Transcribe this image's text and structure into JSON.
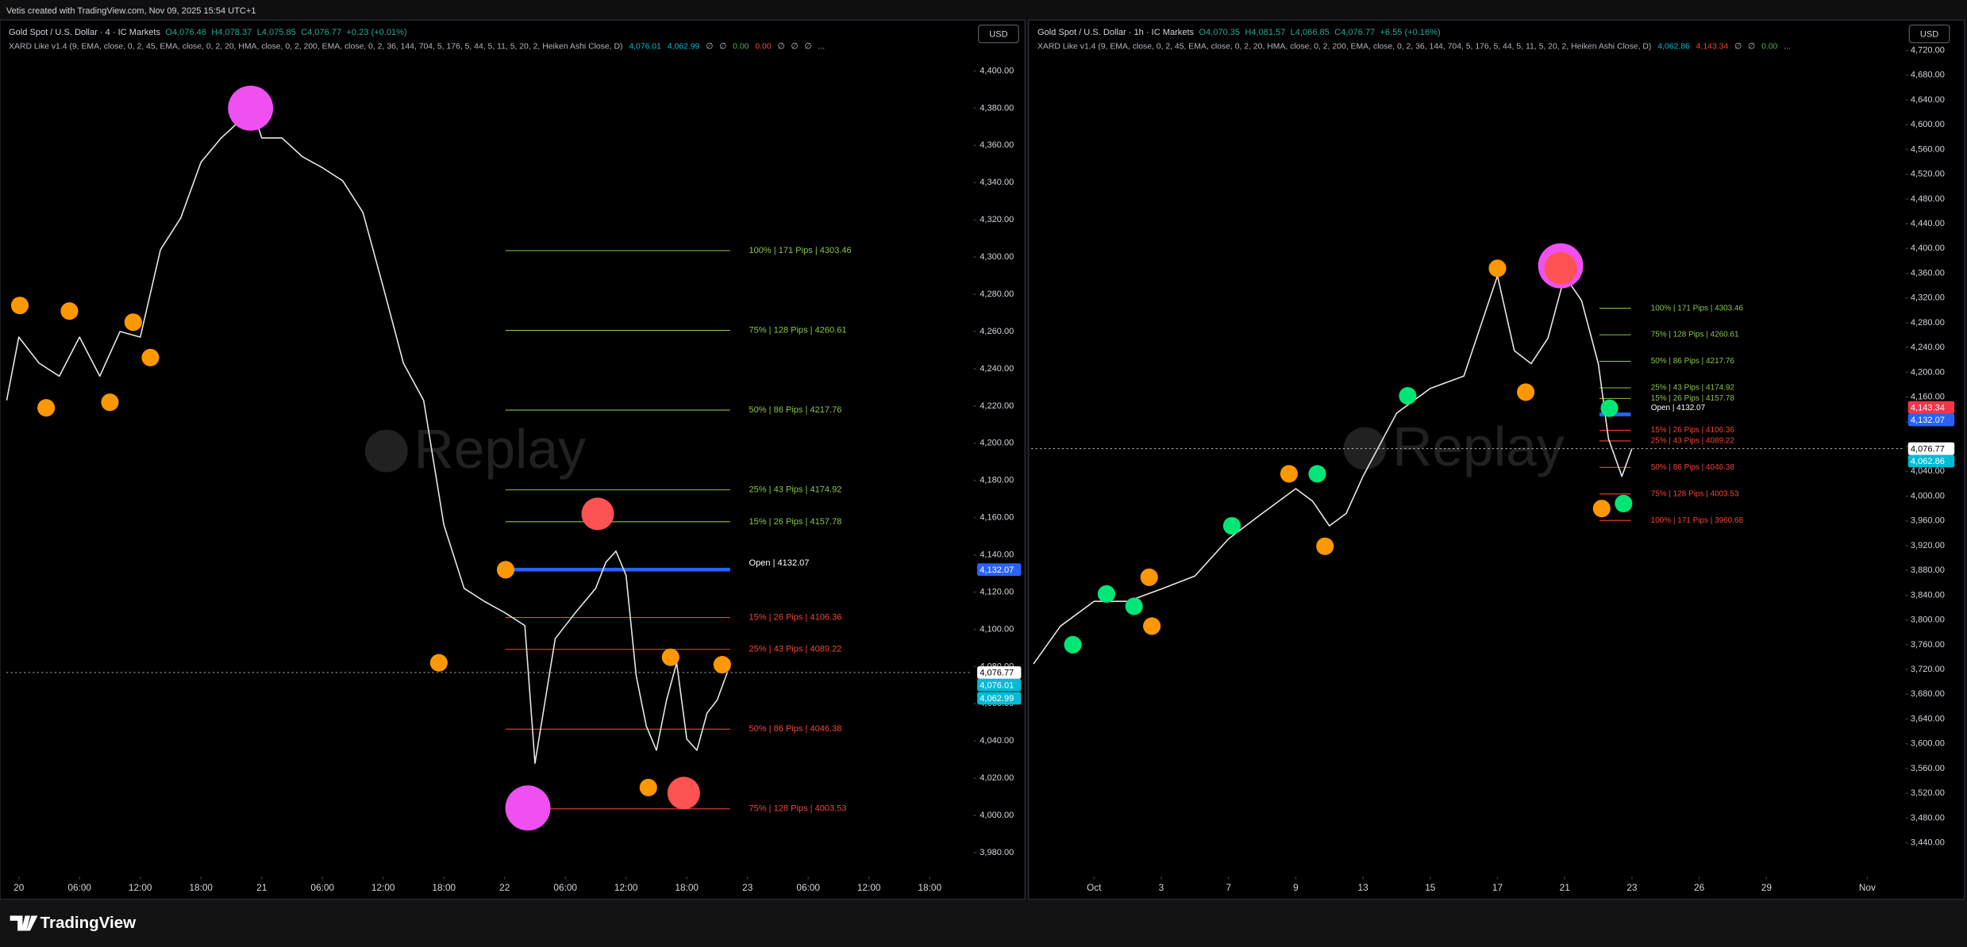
{
  "header": {
    "credit": "Vetis created with TradingView.com, Nov 09, 2025 15:54 UTC+1"
  },
  "footer": {
    "brand": "TradingView"
  },
  "chart_data": [
    {
      "type": "line",
      "title": "Gold Spot / U.S. Dollar · 4 · IC Markets",
      "ohlc": [
        "O4,076.46",
        "H4,078.37",
        "L4,075.85",
        "C4,076.77",
        "+0.23 (+0.01%)"
      ],
      "ohlc_color": "#26a69a",
      "indicator": "XARD Like v1.4 (9, EMA, close, 0, 2, 45, EMA, close, 0, 2, 20, HMA, close, 0, 2, 200, EMA, close, 0, 2, 36, 144, 704, 5, 176, 5, 44, 5, 11, 5, 20, 2, Heiken Ashi Close, D)",
      "indicator_values": [
        {
          "label": "4,076.01",
          "color": "#00bcd4"
        },
        {
          "label": "4,062.99",
          "color": "#00bcd4"
        },
        {
          "label": "∅",
          "color": "#b2b5be"
        },
        {
          "label": "∅",
          "color": "#b2b5be"
        },
        {
          "label": "0.00",
          "color": "#4caf50"
        },
        {
          "label": "0.00",
          "color": "#f44336"
        },
        {
          "label": "∅",
          "color": "#b2b5be"
        },
        {
          "label": "∅",
          "color": "#b2b5be"
        },
        {
          "label": "∅",
          "color": "#b2b5be"
        },
        {
          "label": "...",
          "color": "#b2b5be"
        }
      ],
      "currency": "USD",
      "watermark": "Replay",
      "x": [
        -1.2,
        0,
        2,
        4,
        6,
        8,
        10,
        12,
        14,
        16,
        18,
        20,
        22,
        23,
        24,
        26,
        28,
        30,
        32,
        34,
        36,
        38,
        40,
        42,
        44,
        46,
        48,
        50,
        51,
        53,
        55,
        57,
        58,
        59,
        60,
        61,
        62,
        63,
        64,
        65,
        66,
        67,
        68,
        69,
        70
      ],
      "series": [
        {
          "color": "#e8e8e8",
          "values": [
            4223,
            4257,
            4243,
            4236,
            4257,
            4236,
            4260,
            4257,
            4304,
            4321,
            4351,
            4364,
            4374,
            4381,
            4364,
            4364,
            4354,
            4348,
            4341,
            4324,
            4284,
            4243,
            4223,
            4156,
            4122,
            4115,
            4109,
            4102,
            4028,
            4095,
            4109,
            4122,
            4136,
            4142,
            4129,
            4075,
            4048,
            4035,
            4062,
            4082,
            4041,
            4035,
            4055,
            4062,
            4076.77
          ]
        }
      ],
      "last_price_line": true,
      "xlim": [
        -1.24,
        94.2
      ],
      "xticks": [
        {
          "value": 0,
          "label": "20"
        },
        {
          "value": 6,
          "label": "06:00"
        },
        {
          "value": 12,
          "label": "12:00"
        },
        {
          "value": 18,
          "label": "18:00"
        },
        {
          "value": 24,
          "label": "21"
        },
        {
          "value": 30,
          "label": "06:00"
        },
        {
          "value": 36,
          "label": "12:00"
        },
        {
          "value": 42,
          "label": "18:00"
        },
        {
          "value": 48,
          "label": "22"
        },
        {
          "value": 54,
          "label": "06:00"
        },
        {
          "value": 60,
          "label": "12:00"
        },
        {
          "value": 66,
          "label": "18:00"
        },
        {
          "value": 72,
          "label": "23"
        },
        {
          "value": 78,
          "label": "06:00"
        },
        {
          "value": 84,
          "label": "12:00"
        },
        {
          "value": 90,
          "label": "18:00"
        }
      ],
      "ylim": [
        3967,
        4426
      ],
      "yticks": [
        {
          "value": 4400,
          "label": "4,400.00"
        },
        {
          "value": 4380,
          "label": "4,380.00"
        },
        {
          "value": 4360,
          "label": "4,360.00"
        },
        {
          "value": 4340,
          "label": "4,340.00"
        },
        {
          "value": 4320,
          "label": "4,320.00"
        },
        {
          "value": 4300,
          "label": "4,300.00"
        },
        {
          "value": 4280,
          "label": "4,280.00"
        },
        {
          "value": 4260,
          "label": "4,260.00"
        },
        {
          "value": 4240,
          "label": "4,240.00"
        },
        {
          "value": 4220,
          "label": "4,220.00"
        },
        {
          "value": 4200,
          "label": "4,200.00"
        },
        {
          "value": 4180,
          "label": "4,180.00"
        },
        {
          "value": 4160,
          "label": "4,160.00"
        },
        {
          "value": 4140,
          "label": "4,140.00"
        },
        {
          "value": 4120,
          "label": "4,120.00"
        },
        {
          "value": 4100,
          "label": "4,100.00"
        },
        {
          "value": 4080,
          "label": "4,080.00"
        },
        {
          "value": 4060,
          "label": "4,060.00"
        },
        {
          "value": 4040,
          "label": "4,040.00"
        },
        {
          "value": 4020,
          "label": "4,020.00"
        },
        {
          "value": 4000,
          "label": "4,000.00"
        },
        {
          "value": 3980,
          "label": "3,980.00"
        }
      ],
      "levels": [
        {
          "label": "100% | 171 Pips | 4303.46",
          "value": 4303.46,
          "color": "#8bc34a"
        },
        {
          "label": "75% | 128 Pips | 4260.61",
          "value": 4260.61,
          "color": "#8bc34a"
        },
        {
          "label": "50% | 86 Pips | 4217.76",
          "value": 4217.76,
          "color": "#8bc34a"
        },
        {
          "label": "25% | 43 Pips | 4174.92",
          "value": 4174.92,
          "color": "#8bc34a"
        },
        {
          "label": "15% | 26 Pips | 4157.78",
          "value": 4157.78,
          "color": "#8bc34a"
        },
        {
          "label": "Open | 4132.07",
          "value": 4132.07,
          "color": "#2962ff"
        },
        {
          "label": "15% | 26 Pips | 4106.36",
          "value": 4106.36,
          "color": "#f44336"
        },
        {
          "label": "25% | 43 Pips | 4089.22",
          "value": 4089.22,
          "color": "#f44336"
        },
        {
          "label": "50% | 86 Pips | 4046.38",
          "value": 4046.38,
          "color": "#f44336"
        },
        {
          "label": "75% | 128 Pips | 4003.53",
          "value": 4003.53,
          "color": "#f44336"
        }
      ],
      "price_tags": [
        {
          "value": 4132.07,
          "label": "4,132.07",
          "color": "#2962ff"
        },
        {
          "value": 4076.77,
          "label": "4,076.77",
          "color": "#ffffff"
        },
        {
          "value": 4076.01,
          "label": "4,076.01",
          "color": "#00bcd4"
        },
        {
          "value": 4062.99,
          "label": "4,062.99",
          "color": "#00bcd4"
        }
      ],
      "signals": [
        {
          "color": "#ff9800",
          "size": "small",
          "x": [
            0.1,
            2.7,
            5,
            9,
            11.3,
            13,
            41.5,
            48.1,
            62.2,
            64.4,
            69.5
          ],
          "values": [
            4274,
            4219,
            4271,
            4222,
            4265,
            4246,
            4082,
            4132,
            4015,
            4085,
            4081
          ]
        },
        {
          "color": "#f050f0",
          "size": "large",
          "x": [
            22.9,
            50.3
          ],
          "values": [
            4380,
            4004
          ]
        },
        {
          "color": "#ff5252",
          "size": "medium",
          "x": [
            57.2,
            65.7
          ],
          "values": [
            4162,
            4012
          ]
        }
      ]
    },
    {
      "type": "line",
      "title": "Gold Spot / U.S. Dollar · 1h · IC Markets",
      "ohlc": [
        "O4,070.35",
        "H4,081.57",
        "L4,066.85",
        "C4,076.77",
        "+6.55 (+0.16%)"
      ],
      "ohlc_color": "#26a69a",
      "indicator": "XARD Like v1.4 (9, EMA, close, 0, 2, 45, EMA, close, 0, 2, 20, HMA, close, 0, 2, 200, EMA, close, 0, 2, 36, 144, 704, 5, 176, 5, 44, 5, 11, 5, 20, 2, Heiken Ashi Close, D)",
      "indicator_values": [
        {
          "label": "4,062.86",
          "color": "#00bcd4"
        },
        {
          "label": "4,143.34",
          "color": "#f44336"
        },
        {
          "label": "∅",
          "color": "#b2b5be"
        },
        {
          "label": "∅",
          "color": "#b2b5be"
        },
        {
          "label": "0.00",
          "color": "#4caf50"
        },
        {
          "label": "...",
          "color": "#b2b5be"
        }
      ],
      "currency": "USD",
      "watermark": "Replay",
      "x": [
        -1.8,
        -1,
        0,
        1,
        2,
        3,
        4,
        5,
        6,
        6.5,
        7,
        7.5,
        8,
        9,
        10,
        11,
        12,
        12.5,
        13,
        13.5,
        14,
        14.5,
        15,
        15.3,
        15.7,
        16
      ],
      "series": [
        {
          "color": "#e8e8e8",
          "values": [
            3729,
            3790,
            3830,
            3830,
            3850,
            3871,
            3931,
            3972,
            4012,
            3992,
            3952,
            3972,
            4032,
            4134,
            4174,
            4194,
            4356,
            4235,
            4214,
            4255,
            4356,
            4316,
            4214,
            4093,
            4032,
            4076.77
          ]
        }
      ],
      "last_price_line": true,
      "xlim": [
        -1.87,
        24.1
      ],
      "xticks": [
        {
          "value": 0,
          "label": "Oct"
        },
        {
          "value": 2,
          "label": "3"
        },
        {
          "value": 4,
          "label": "7"
        },
        {
          "value": 6,
          "label": "9"
        },
        {
          "value": 8,
          "label": "13"
        },
        {
          "value": 10,
          "label": "15"
        },
        {
          "value": 12,
          "label": "17"
        },
        {
          "value": 14,
          "label": "21"
        },
        {
          "value": 16,
          "label": "23"
        },
        {
          "value": 18,
          "label": "26"
        },
        {
          "value": 20,
          "label": "29"
        },
        {
          "value": 23,
          "label": "Nov"
        }
      ],
      "ylim": [
        3385,
        4765
      ],
      "yticks": [
        {
          "value": 4720,
          "label": "4,720.00"
        },
        {
          "value": 4680,
          "label": "4,680.00"
        },
        {
          "value": 4640,
          "label": "4,640.00"
        },
        {
          "value": 4600,
          "label": "4,600.00"
        },
        {
          "value": 4560,
          "label": "4,560.00"
        },
        {
          "value": 4520,
          "label": "4,520.00"
        },
        {
          "value": 4480,
          "label": "4,480.00"
        },
        {
          "value": 4440,
          "label": "4,440.00"
        },
        {
          "value": 4400,
          "label": "4,400.00"
        },
        {
          "value": 4360,
          "label": "4,360.00"
        },
        {
          "value": 4320,
          "label": "4,320.00"
        },
        {
          "value": 4280,
          "label": "4,280.00"
        },
        {
          "value": 4240,
          "label": "4,240.00"
        },
        {
          "value": 4200,
          "label": "4,200.00"
        },
        {
          "value": 4160,
          "label": "4,160.00"
        },
        {
          "value": 4120,
          "label": "4,120.00"
        },
        {
          "value": 4080,
          "label": "4,080.00"
        },
        {
          "value": 4040,
          "label": "4,040.00"
        },
        {
          "value": 4000,
          "label": "4,000.00"
        },
        {
          "value": 3960,
          "label": "3,960.00"
        },
        {
          "value": 3920,
          "label": "3,920.00"
        },
        {
          "value": 3880,
          "label": "3,880.00"
        },
        {
          "value": 3840,
          "label": "3,840.00"
        },
        {
          "value": 3800,
          "label": "3,800.00"
        },
        {
          "value": 3760,
          "label": "3,760.00"
        },
        {
          "value": 3720,
          "label": "3,720.00"
        },
        {
          "value": 3680,
          "label": "3,680.00"
        },
        {
          "value": 3640,
          "label": "3,640.00"
        },
        {
          "value": 3600,
          "label": "3,600.00"
        },
        {
          "value": 3560,
          "label": "3,560.00"
        },
        {
          "value": 3520,
          "label": "3,520.00"
        },
        {
          "value": 3480,
          "label": "3,480.00"
        },
        {
          "value": 3440,
          "label": "3,440.00"
        }
      ],
      "levels": [
        {
          "label": "100% | 171 Pips | 4303.46",
          "value": 4303.46,
          "color": "#8bc34a"
        },
        {
          "label": "75% | 128 Pips | 4260.61",
          "value": 4260.61,
          "color": "#8bc34a"
        },
        {
          "label": "50% | 86 Pips | 4217.76",
          "value": 4217.76,
          "color": "#8bc34a"
        },
        {
          "label": "25% | 43 Pips | 4174.92",
          "value": 4174.92,
          "color": "#8bc34a"
        },
        {
          "label": "15% | 26 Pips | 4157.78",
          "value": 4157.78,
          "color": "#8bc34a"
        },
        {
          "label": "Open | 4132.07",
          "value": 4132.07,
          "color": "#2962ff"
        },
        {
          "label": "15% | 26 Pips | 4106.36",
          "value": 4106.36,
          "color": "#f44336"
        },
        {
          "label": "25% | 43 Pips | 4089.22",
          "value": 4089.22,
          "color": "#f44336"
        },
        {
          "label": "50% | 86 Pips | 4046.38",
          "value": 4046.38,
          "color": "#f44336"
        },
        {
          "label": "75% | 128 Pips | 4003.53",
          "value": 4003.53,
          "color": "#f44336"
        },
        {
          "label": "100% | 171 Pips | 3960.68",
          "value": 3960.68,
          "color": "#f44336"
        }
      ],
      "price_tags": [
        {
          "value": 4143.34,
          "label": "4,143.34",
          "color": "#f23645"
        },
        {
          "value": 4132.07,
          "label": "4,132.07",
          "color": "#2962ff"
        },
        {
          "value": 4076.77,
          "label": "4,076.77",
          "color": "#ffffff"
        },
        {
          "value": 4062.86,
          "label": "4,062.86",
          "color": "#00bcd4"
        }
      ],
      "signals": [
        {
          "color": "#f050f0",
          "size": "large",
          "x": [
            13.88
          ],
          "values": [
            4372
          ]
        },
        {
          "color": "#ff5252",
          "size": "medium",
          "x": [
            13.88
          ],
          "values": [
            4368
          ]
        },
        {
          "color": "#ff9800",
          "size": "small",
          "x": [
            12,
            12.84,
            5.8,
            6.87,
            1.72,
            15.1,
            1.64
          ],
          "values": [
            4368,
            4168,
            4036,
            3919,
            3790,
            3980,
            3869
          ]
        },
        {
          "color": "#00e676",
          "size": "small",
          "x": [
            -0.63,
            0.37,
            1.19,
            4.1,
            9.33,
            6.64,
            15.33,
            15.75
          ],
          "values": [
            3760,
            3842,
            3822,
            3952,
            4162,
            4036,
            4142,
            3988
          ]
        }
      ]
    }
  ]
}
